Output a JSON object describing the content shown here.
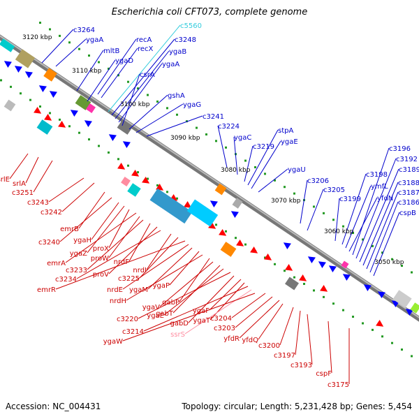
{
  "title": "Escherichia coli CFT073, complete genome",
  "footer": {
    "accession": "Accession: NC_004431",
    "summary": "Topology: circular; Length: 5,231,428 bp; Genes: 5,454"
  },
  "colors": {
    "forward_gene": "#ff0000",
    "reverse_gene": "#0000ff",
    "rna": "#ff8ca0",
    "highlight": "#33ccdd",
    "backbone": "#8c8c8c",
    "gc_tick": "#229922"
  },
  "kbp_labels": [
    "3120 kbp",
    "3110 kbp",
    "3100 kbp",
    "3090 kbp",
    "3080 kbp",
    "3070 kbp",
    "3060 kbp",
    "3050 kbp"
  ],
  "top_labels": [
    {
      "text": "c3264",
      "color": "#0000cc"
    },
    {
      "text": "ygaA",
      "color": "#0000cc"
    },
    {
      "text": "mltB",
      "color": "#0000cc"
    },
    {
      "text": "ygaD",
      "color": "#0000cc"
    },
    {
      "text": "recA",
      "color": "#0000cc"
    },
    {
      "text": "recX",
      "color": "#0000cc"
    },
    {
      "text": "c5560",
      "color": "#33ccdd"
    },
    {
      "text": "c3248",
      "color": "#0000cc"
    },
    {
      "text": "ygaB",
      "color": "#0000cc"
    },
    {
      "text": "ygaA",
      "color": "#0000cc"
    },
    {
      "text": "csrA",
      "color": "#0000cc"
    },
    {
      "text": "gshA",
      "color": "#0000cc"
    },
    {
      "text": "ygaG",
      "color": "#0000cc"
    },
    {
      "text": "c3241",
      "color": "#0000cc"
    },
    {
      "text": "c3224",
      "color": "#0000cc"
    },
    {
      "text": "ygaC",
      "color": "#0000cc"
    },
    {
      "text": "c3219",
      "color": "#0000cc"
    },
    {
      "text": "stpA",
      "color": "#0000cc"
    },
    {
      "text": "ygaE",
      "color": "#0000cc"
    },
    {
      "text": "ygaU",
      "color": "#0000cc"
    },
    {
      "text": "c3206",
      "color": "#0000cc"
    },
    {
      "text": "c3205",
      "color": "#0000cc"
    },
    {
      "text": "c3199",
      "color": "#0000cc"
    },
    {
      "text": "c3198",
      "color": "#0000cc"
    },
    {
      "text": "ymfL",
      "color": "#0000cc"
    },
    {
      "text": "yfdN",
      "color": "#0000cc"
    },
    {
      "text": "c3196",
      "color": "#0000cc"
    },
    {
      "text": "c3192",
      "color": "#0000cc"
    },
    {
      "text": "c3189",
      "color": "#0000cc"
    },
    {
      "text": "c3188",
      "color": "#0000cc"
    },
    {
      "text": "c3187",
      "color": "#0000cc"
    },
    {
      "text": "c3186",
      "color": "#0000cc"
    },
    {
      "text": "cspB",
      "color": "#0000cc"
    }
  ],
  "bottom_labels": [
    {
      "text": "srlE",
      "color": "#cc0000"
    },
    {
      "text": "srlA",
      "color": "#cc0000"
    },
    {
      "text": "c3251",
      "color": "#cc0000"
    },
    {
      "text": "c3243",
      "color": "#cc0000"
    },
    {
      "text": "c3242",
      "color": "#cc0000"
    },
    {
      "text": "emrB",
      "color": "#cc0000"
    },
    {
      "text": "c3240",
      "color": "#cc0000"
    },
    {
      "text": "ygaH",
      "color": "#cc0000"
    },
    {
      "text": "ygaZ",
      "color": "#cc0000"
    },
    {
      "text": "proX",
      "color": "#cc0000"
    },
    {
      "text": "emrA",
      "color": "#cc0000"
    },
    {
      "text": "proW",
      "color": "#cc0000"
    },
    {
      "text": "c3233",
      "color": "#cc0000"
    },
    {
      "text": "nrdF",
      "color": "#cc0000"
    },
    {
      "text": "proV",
      "color": "#cc0000"
    },
    {
      "text": "c3234",
      "color": "#cc0000"
    },
    {
      "text": "nrdI",
      "color": "#cc0000"
    },
    {
      "text": "c3225",
      "color": "#cc0000"
    },
    {
      "text": "emrR",
      "color": "#cc0000"
    },
    {
      "text": "nrdE",
      "color": "#cc0000"
    },
    {
      "text": "ygaM",
      "color": "#cc0000"
    },
    {
      "text": "ygaP",
      "color": "#cc0000"
    },
    {
      "text": "nrdH",
      "color": "#cc0000"
    },
    {
      "text": "gabP",
      "color": "#cc0000"
    },
    {
      "text": "ygaV",
      "color": "#cc0000"
    },
    {
      "text": "gabT",
      "color": "#cc0000"
    },
    {
      "text": "ygaE",
      "color": "#cc0000"
    },
    {
      "text": "c3220",
      "color": "#cc0000"
    },
    {
      "text": "gabD",
      "color": "#cc0000"
    },
    {
      "text": "ygaF",
      "color": "#cc0000"
    },
    {
      "text": "ygaT",
      "color": "#cc0000"
    },
    {
      "text": "c3214",
      "color": "#cc0000"
    },
    {
      "text": "ssrS",
      "color": "#ff8ca0"
    },
    {
      "text": "ygaW",
      "color": "#cc0000"
    },
    {
      "text": "c3204",
      "color": "#cc0000"
    },
    {
      "text": "c3203",
      "color": "#cc0000"
    },
    {
      "text": "yfdR",
      "color": "#cc0000"
    },
    {
      "text": "yfdQ",
      "color": "#cc0000"
    },
    {
      "text": "c3200",
      "color": "#cc0000"
    },
    {
      "text": "c3197",
      "color": "#cc0000"
    },
    {
      "text": "c3193",
      "color": "#cc0000"
    },
    {
      "text": "cspF",
      "color": "#cc0000"
    },
    {
      "text": "c3175",
      "color": "#cc0000"
    }
  ]
}
